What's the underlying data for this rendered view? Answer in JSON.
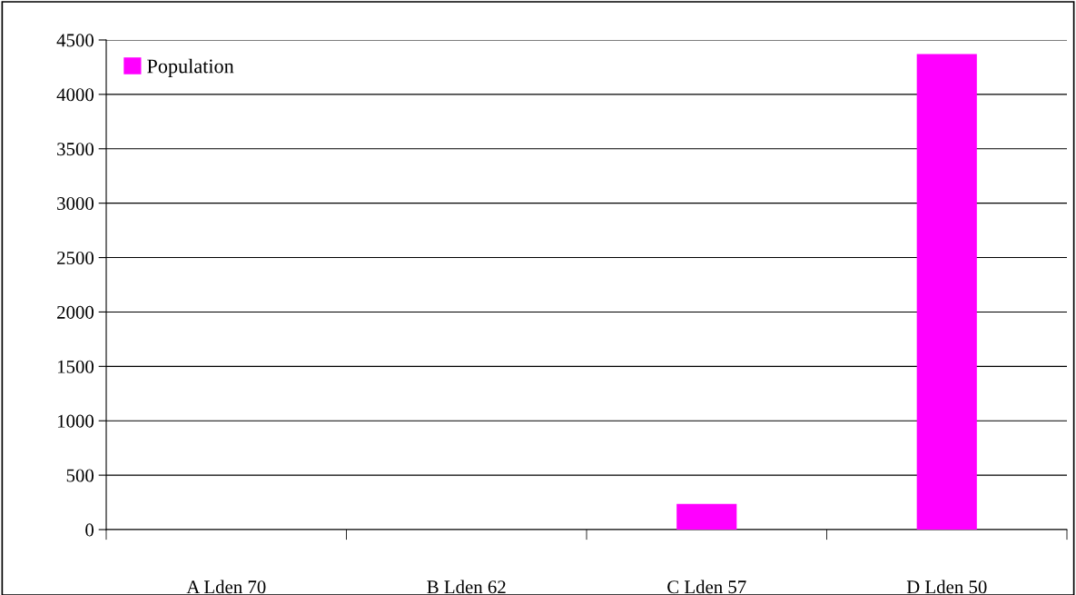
{
  "chart_data": {
    "type": "bar",
    "categories": [
      "A Lden 70",
      "B Lden 62",
      "C Lden 57",
      "D Lden 50"
    ],
    "series": [
      {
        "name": "Population",
        "color": "#ff00ff",
        "values": [
          0,
          0,
          236,
          4370
        ]
      }
    ],
    "ylim": [
      0,
      4500
    ],
    "yticks": [
      0,
      500,
      1000,
      1500,
      2000,
      2500,
      3000,
      3500,
      4000,
      4500
    ],
    "grid": "y",
    "legend": "top left"
  }
}
